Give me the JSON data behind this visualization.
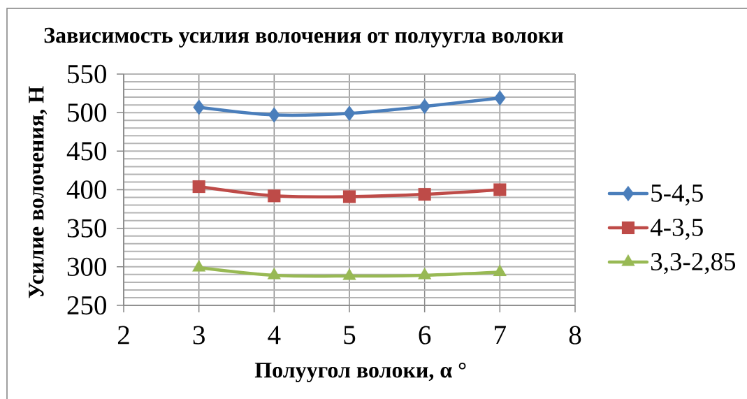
{
  "chart_data": {
    "type": "line",
    "title": "Зависимость усилия волочения от полуугла волоки",
    "xlabel": "Полуугол волоки, α °",
    "ylabel": "Усилие волочения, Н",
    "x": [
      3,
      4,
      5,
      6,
      7
    ],
    "xlim": [
      2,
      8
    ],
    "xticks": [
      2,
      3,
      4,
      5,
      6,
      7,
      8
    ],
    "ylim": [
      250,
      550
    ],
    "yticks": [
      250,
      {
        "value": 260,
        "label": null
      },
      {
        "value": 270,
        "label": null
      },
      {
        "value": 280,
        "label": null
      },
      {
        "value": 290,
        "label": null
      },
      300,
      {
        "value": 310,
        "label": null
      },
      {
        "value": 320,
        "label": null
      },
      {
        "value": 330,
        "label": null
      },
      {
        "value": 340,
        "label": null
      },
      350,
      {
        "value": 360,
        "label": null
      },
      {
        "value": 370,
        "label": null
      },
      {
        "value": 380,
        "label": null
      },
      {
        "value": 390,
        "label": null
      },
      400,
      {
        "value": 410,
        "label": null
      },
      {
        "value": 420,
        "label": null
      },
      {
        "value": 430,
        "label": null
      },
      {
        "value": 440,
        "label": null
      },
      450,
      {
        "value": 460,
        "label": null
      },
      {
        "value": 470,
        "label": null
      },
      {
        "value": 480,
        "label": null
      },
      {
        "value": 490,
        "label": null
      },
      500,
      {
        "value": 510,
        "label": null
      },
      {
        "value": 520,
        "label": null
      },
      {
        "value": 530,
        "label": null
      },
      {
        "value": 540,
        "label": null
      },
      550
    ],
    "grid": true,
    "legend": "right",
    "line_style": "solid",
    "series": [
      {
        "name": "5-4,5",
        "color": "#4a7ebb",
        "marker": "diamond",
        "values": [
          507,
          497,
          499,
          508,
          519
        ]
      },
      {
        "name": "4-3,5",
        "color": "#be4b48",
        "marker": "square",
        "values": [
          404,
          392,
          391,
          394,
          400
        ]
      },
      {
        "name": "3,3-2,85",
        "color": "#98b954",
        "marker": "triangle",
        "values": [
          299,
          289,
          288,
          289,
          293
        ]
      }
    ]
  }
}
